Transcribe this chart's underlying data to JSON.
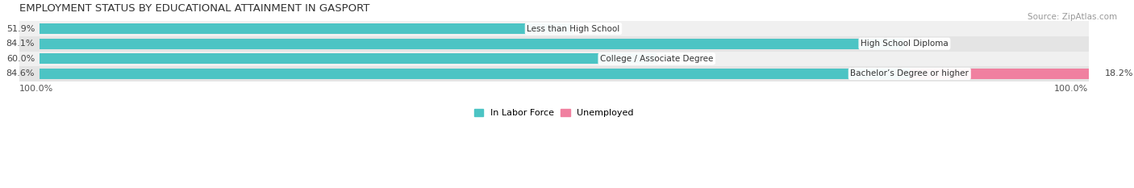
{
  "title": "EMPLOYMENT STATUS BY EDUCATIONAL ATTAINMENT IN GASPORT",
  "source": "Source: ZipAtlas.com",
  "categories": [
    "Less than High School",
    "High School Diploma",
    "College / Associate Degree",
    "Bachelor’s Degree or higher"
  ],
  "in_labor_force": [
    51.9,
    84.1,
    60.0,
    84.6
  ],
  "unemployed": [
    0.0,
    0.0,
    0.0,
    18.2
  ],
  "labor_force_color": "#4cc4c4",
  "unemployed_color": "#f080a0",
  "row_bg_colors": [
    "#f0f0f0",
    "#e4e4e4"
  ],
  "left_label": "100.0%",
  "right_label": "100.0%",
  "max_value": 100.0,
  "title_fontsize": 9.5,
  "source_fontsize": 7.5,
  "bar_label_fontsize": 8,
  "cat_label_fontsize": 7.5
}
